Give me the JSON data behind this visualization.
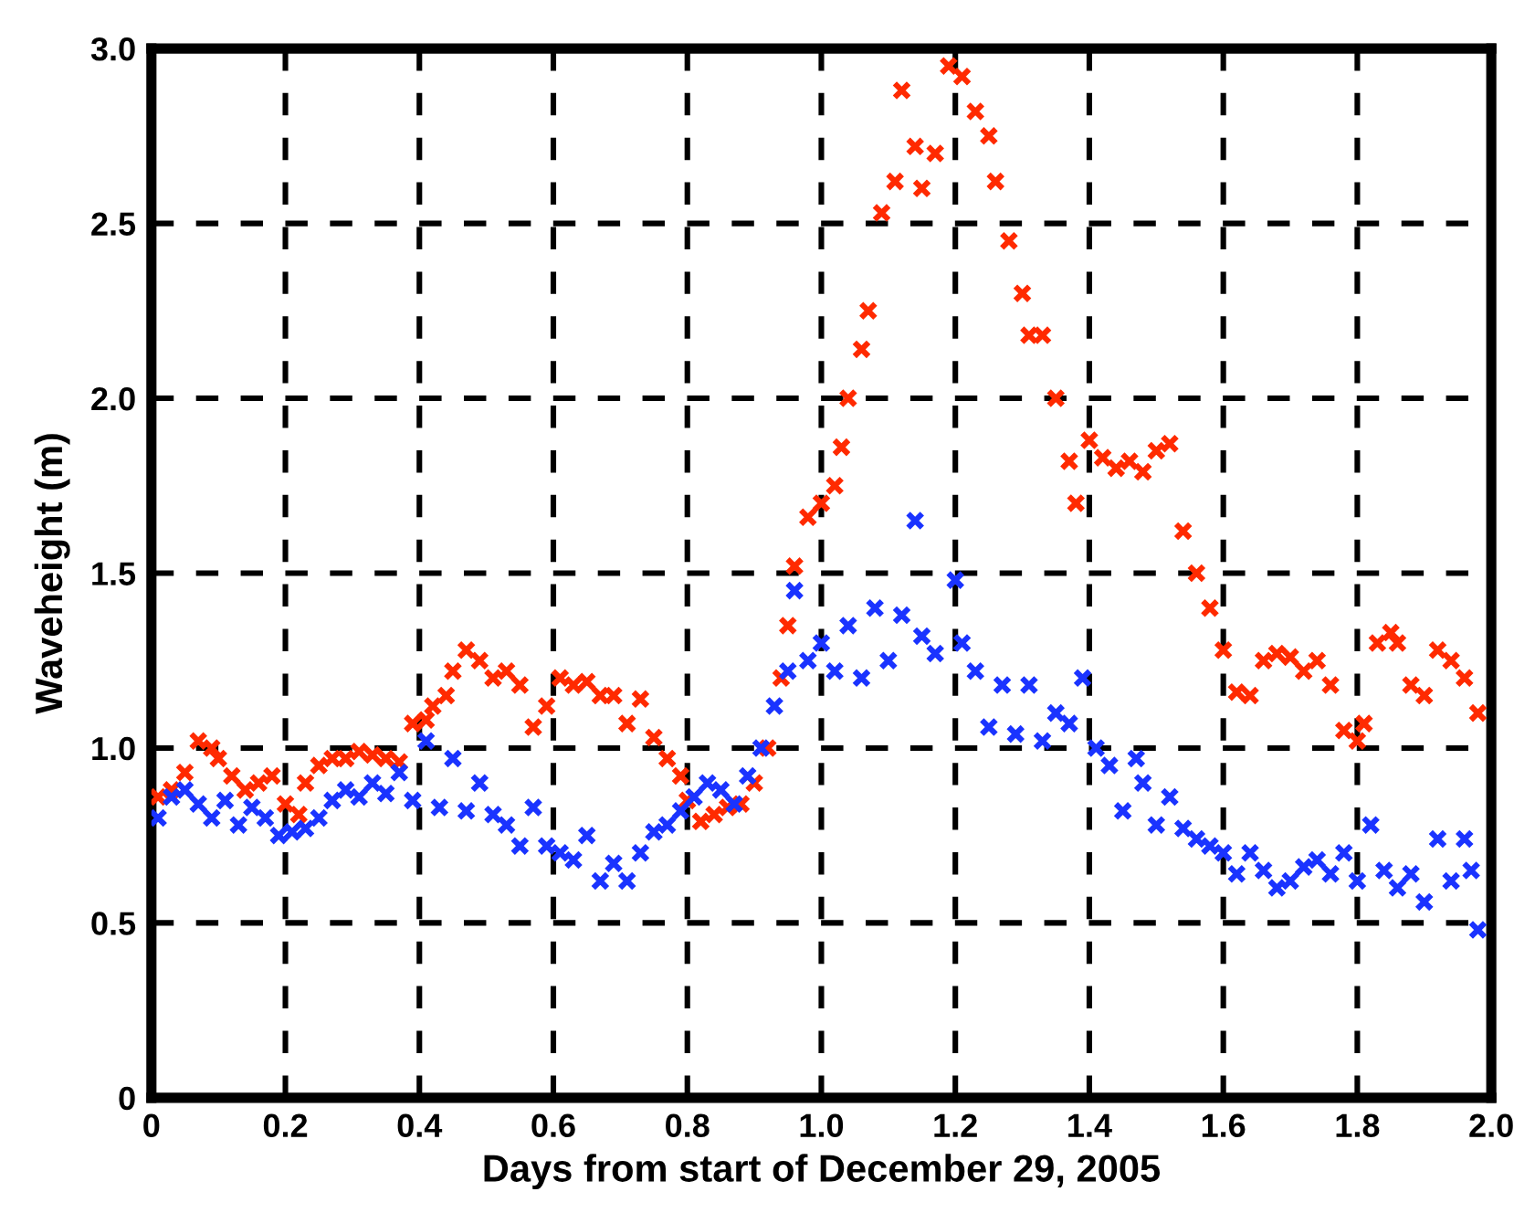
{
  "chart_data": {
    "type": "scatter",
    "xlabel": "Days from start of December 29, 2005",
    "ylabel": "Waveheight (m)",
    "xlim": [
      0,
      2.0
    ],
    "ylim": [
      0,
      3.0
    ],
    "xticks": [
      0,
      0.2,
      0.4,
      0.6,
      0.8,
      {
        "value": 1.0,
        "label": "1.0"
      },
      1.2,
      1.4,
      1.6,
      1.8,
      {
        "value": 2.0,
        "label": "2.0"
      }
    ],
    "yticks": [
      0,
      0.5,
      {
        "value": 1.0,
        "label": "1.0"
      },
      1.5,
      {
        "value": 2.0,
        "label": "2.0"
      },
      2.5,
      {
        "value": 3.0,
        "label": "3.0"
      }
    ],
    "grid": true,
    "marker": "cross",
    "series": [
      {
        "color": "#ff2a00",
        "x": [
          0.01,
          0.03,
          0.05,
          0.07,
          0.09,
          0.1,
          0.12,
          0.14,
          0.16,
          0.18,
          0.2,
          0.22,
          0.23,
          0.25,
          0.27,
          0.29,
          0.31,
          0.33,
          0.35,
          0.37,
          0.39,
          0.41,
          0.42,
          0.44,
          0.45,
          0.47,
          0.49,
          0.51,
          0.53,
          0.55,
          0.57,
          0.59,
          0.61,
          0.63,
          0.65,
          0.67,
          0.69,
          0.71,
          0.73,
          0.75,
          0.77,
          0.79,
          0.8,
          0.82,
          0.84,
          0.86,
          0.88,
          0.9,
          0.92,
          0.94,
          0.95,
          0.96,
          0.98,
          1.0,
          1.02,
          1.03,
          1.04,
          1.06,
          1.07,
          1.09,
          1.11,
          1.12,
          1.14,
          1.15,
          1.17,
          1.19,
          1.21,
          1.23,
          1.25,
          1.26,
          1.28,
          1.3,
          1.31,
          1.33,
          1.35,
          1.37,
          1.38,
          1.4,
          1.42,
          1.44,
          1.46,
          1.48,
          1.5,
          1.52,
          1.54,
          1.56,
          1.58,
          1.6,
          1.62,
          1.64,
          1.66,
          1.68,
          1.7,
          1.72,
          1.74,
          1.76,
          1.78,
          1.8,
          1.81,
          1.83,
          1.85,
          1.86,
          1.88,
          1.9,
          1.92,
          1.94,
          1.96,
          1.98
        ],
        "values": [
          0.86,
          0.88,
          0.93,
          1.02,
          1.0,
          0.97,
          0.92,
          0.88,
          0.9,
          0.92,
          0.84,
          0.81,
          0.9,
          0.95,
          0.97,
          0.97,
          0.99,
          0.98,
          0.97,
          0.96,
          1.07,
          1.08,
          1.12,
          1.15,
          1.22,
          1.28,
          1.25,
          1.2,
          1.22,
          1.18,
          1.06,
          1.12,
          1.2,
          1.18,
          1.19,
          1.15,
          1.15,
          1.07,
          1.14,
          1.03,
          0.97,
          0.92,
          0.85,
          0.79,
          0.81,
          0.83,
          0.84,
          0.9,
          1.0,
          1.2,
          1.35,
          1.52,
          1.66,
          1.7,
          1.75,
          1.86,
          2.0,
          2.14,
          2.25,
          2.53,
          2.62,
          2.88,
          2.72,
          2.6,
          2.7,
          2.95,
          2.92,
          2.82,
          2.75,
          2.62,
          2.45,
          2.3,
          2.18,
          2.18,
          2.0,
          1.82,
          1.7,
          1.88,
          1.83,
          1.8,
          1.82,
          1.79,
          1.85,
          1.87,
          1.62,
          1.5,
          1.4,
          1.28,
          1.16,
          1.15,
          1.25,
          1.27,
          1.26,
          1.22,
          1.25,
          1.18,
          1.05,
          1.02,
          1.07,
          1.3,
          1.33,
          1.3,
          1.18,
          1.15,
          1.28,
          1.25,
          1.2,
          1.1
        ]
      },
      {
        "color": "#1a33ff",
        "x": [
          0.01,
          0.03,
          0.05,
          0.07,
          0.09,
          0.11,
          0.13,
          0.15,
          0.17,
          0.19,
          0.21,
          0.23,
          0.25,
          0.27,
          0.29,
          0.31,
          0.33,
          0.35,
          0.37,
          0.39,
          0.41,
          0.43,
          0.45,
          0.47,
          0.49,
          0.51,
          0.53,
          0.55,
          0.57,
          0.59,
          0.61,
          0.63,
          0.65,
          0.67,
          0.69,
          0.71,
          0.73,
          0.75,
          0.77,
          0.79,
          0.81,
          0.83,
          0.85,
          0.87,
          0.89,
          0.91,
          0.93,
          0.95,
          0.96,
          0.98,
          1.0,
          1.02,
          1.04,
          1.06,
          1.08,
          1.1,
          1.12,
          1.14,
          1.15,
          1.17,
          1.2,
          1.21,
          1.23,
          1.25,
          1.27,
          1.29,
          1.31,
          1.33,
          1.35,
          1.37,
          1.39,
          1.41,
          1.43,
          1.45,
          1.47,
          1.48,
          1.5,
          1.52,
          1.54,
          1.56,
          1.58,
          1.6,
          1.62,
          1.64,
          1.66,
          1.68,
          1.7,
          1.72,
          1.74,
          1.76,
          1.78,
          1.8,
          1.82,
          1.84,
          1.86,
          1.88,
          1.9,
          1.92,
          1.94,
          1.96,
          1.97,
          1.98
        ],
        "values": [
          0.8,
          0.86,
          0.88,
          0.84,
          0.8,
          0.85,
          0.78,
          0.83,
          0.8,
          0.75,
          0.76,
          0.77,
          0.8,
          0.85,
          0.88,
          0.86,
          0.9,
          0.87,
          0.93,
          0.85,
          1.02,
          0.83,
          0.97,
          0.82,
          0.9,
          0.81,
          0.78,
          0.72,
          0.83,
          0.72,
          0.7,
          0.68,
          0.75,
          0.62,
          0.67,
          0.62,
          0.7,
          0.76,
          0.78,
          0.82,
          0.86,
          0.9,
          0.88,
          0.84,
          0.92,
          1.0,
          1.12,
          1.22,
          1.45,
          1.25,
          1.3,
          1.22,
          1.35,
          1.2,
          1.4,
          1.25,
          1.38,
          1.65,
          1.32,
          1.27,
          1.48,
          1.3,
          1.22,
          1.06,
          1.18,
          1.04,
          1.18,
          1.02,
          1.1,
          1.07,
          1.2,
          1.0,
          0.95,
          0.82,
          0.97,
          0.9,
          0.78,
          0.86,
          0.77,
          0.74,
          0.72,
          0.7,
          0.64,
          0.7,
          0.65,
          0.6,
          0.62,
          0.66,
          0.68,
          0.64,
          0.7,
          0.62,
          0.78,
          0.65,
          0.6,
          0.64,
          0.56,
          0.74,
          0.62,
          0.74,
          0.65,
          0.48
        ]
      }
    ]
  }
}
